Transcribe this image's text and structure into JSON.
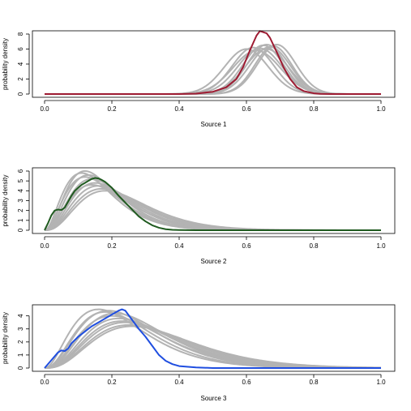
{
  "chart_data": [
    {
      "type": "line",
      "xlabel": "Source 1",
      "ylabel": "probability density",
      "xlim": [
        0,
        1
      ],
      "ylim": [
        0,
        8
      ],
      "x_ticks": [
        0.0,
        0.2,
        0.4,
        0.6,
        0.8,
        1.0
      ],
      "x_tick_labels": [
        "0.0",
        "0.2",
        "0.4",
        "0.6",
        "0.8",
        "1.0"
      ],
      "y_ticks": [
        0,
        2,
        4,
        6,
        8
      ],
      "y_tick_labels": [
        "0",
        "2",
        "4",
        "6",
        "8"
      ],
      "highlight_color": "#9e1b32",
      "background_color": "#b3b3b3",
      "background_series": [
        {
          "shape": "gauss",
          "mu": 0.6,
          "sigma": 0.065,
          "peak": 6.0
        },
        {
          "shape": "gauss",
          "mu": 0.62,
          "sigma": 0.062,
          "peak": 6.2
        },
        {
          "shape": "gauss",
          "mu": 0.64,
          "sigma": 0.065,
          "peak": 6.1
        },
        {
          "shape": "gauss",
          "mu": 0.65,
          "sigma": 0.06,
          "peak": 6.5
        },
        {
          "shape": "gauss",
          "mu": 0.66,
          "sigma": 0.058,
          "peak": 6.6
        },
        {
          "shape": "gauss",
          "mu": 0.67,
          "sigma": 0.06,
          "peak": 6.3
        },
        {
          "shape": "gauss",
          "mu": 0.68,
          "sigma": 0.055,
          "peak": 6.4
        },
        {
          "shape": "gauss",
          "mu": 0.63,
          "sigma": 0.07,
          "peak": 5.8
        },
        {
          "shape": "gauss",
          "mu": 0.69,
          "sigma": 0.057,
          "peak": 6.6
        },
        {
          "shape": "gauss",
          "mu": 0.66,
          "sigma": 0.064,
          "peak": 6.0
        }
      ],
      "highlight_series": {
        "x": [
          0.0,
          0.4,
          0.45,
          0.5,
          0.54,
          0.57,
          0.59,
          0.61,
          0.63,
          0.64,
          0.66,
          0.67,
          0.69,
          0.71,
          0.73,
          0.75,
          0.77,
          0.8,
          0.82,
          0.85,
          1.0
        ],
        "y": [
          0.0,
          0.0,
          0.05,
          0.3,
          0.9,
          2.0,
          3.6,
          5.8,
          7.8,
          8.4,
          8.1,
          7.5,
          5.6,
          3.6,
          2.0,
          0.9,
          0.4,
          0.1,
          0.03,
          0.0,
          0.0
        ]
      }
    },
    {
      "type": "line",
      "xlabel": "Source 2",
      "ylabel": "probability density",
      "xlim": [
        0,
        1
      ],
      "ylim": [
        0,
        6
      ],
      "x_ticks": [
        0.0,
        0.2,
        0.4,
        0.6,
        0.8,
        1.0
      ],
      "x_tick_labels": [
        "0.0",
        "0.2",
        "0.4",
        "0.6",
        "0.8",
        "1.0"
      ],
      "y_ticks": [
        0,
        1,
        2,
        3,
        4,
        5,
        6
      ],
      "y_tick_labels": [
        "0",
        "1",
        "2",
        "3",
        "4",
        "5",
        "6"
      ],
      "highlight_color": "#1f5a1f",
      "background_color": "#b3b3b3",
      "background_series": [
        {
          "shape": "gamma",
          "mode": 0.12,
          "spread": 0.075,
          "peak": 6.0
        },
        {
          "shape": "gamma",
          "mode": 0.13,
          "spread": 0.08,
          "peak": 5.6
        },
        {
          "shape": "gamma",
          "mode": 0.14,
          "spread": 0.085,
          "peak": 5.2
        },
        {
          "shape": "gamma",
          "mode": 0.15,
          "spread": 0.09,
          "peak": 4.8
        },
        {
          "shape": "gamma",
          "mode": 0.16,
          "spread": 0.095,
          "peak": 4.5
        },
        {
          "shape": "gamma",
          "mode": 0.17,
          "spread": 0.1,
          "peak": 4.2
        },
        {
          "shape": "gamma",
          "mode": 0.11,
          "spread": 0.075,
          "peak": 5.8
        },
        {
          "shape": "gamma",
          "mode": 0.18,
          "spread": 0.105,
          "peak": 4.0
        },
        {
          "shape": "gamma",
          "mode": 0.14,
          "spread": 0.09,
          "peak": 4.6
        },
        {
          "shape": "gamma",
          "mode": 0.12,
          "spread": 0.08,
          "peak": 5.4
        }
      ],
      "highlight_series": {
        "x": [
          0.0,
          0.01,
          0.02,
          0.03,
          0.04,
          0.05,
          0.06,
          0.07,
          0.08,
          0.09,
          0.1,
          0.11,
          0.12,
          0.13,
          0.14,
          0.15,
          0.16,
          0.17,
          0.18,
          0.19,
          0.2,
          0.22,
          0.24,
          0.26,
          0.28,
          0.3,
          0.32,
          0.34,
          0.36,
          0.38,
          0.4,
          0.45,
          0.5,
          1.0
        ],
        "y": [
          0.0,
          0.7,
          1.5,
          2.0,
          2.1,
          2.05,
          2.3,
          2.9,
          3.5,
          4.0,
          4.3,
          4.6,
          4.8,
          5.0,
          5.2,
          5.3,
          5.25,
          5.1,
          4.9,
          4.6,
          4.3,
          3.5,
          2.8,
          2.1,
          1.4,
          0.9,
          0.5,
          0.25,
          0.1,
          0.04,
          0.02,
          0.0,
          0.0,
          0.0
        ]
      }
    },
    {
      "type": "line",
      "xlabel": "Source 3",
      "ylabel": "probability density",
      "xlim": [
        0,
        1
      ],
      "ylim": [
        0,
        4.6
      ],
      "x_ticks": [
        0.0,
        0.2,
        0.4,
        0.6,
        0.8,
        1.0
      ],
      "x_tick_labels": [
        "0.0",
        "0.2",
        "0.4",
        "0.6",
        "0.8",
        "1.0"
      ],
      "y_ticks": [
        0,
        1,
        2,
        3,
        4
      ],
      "y_tick_labels": [
        "0",
        "1",
        "2",
        "3",
        "4"
      ],
      "highlight_color": "#1f4ee0",
      "background_color": "#b3b3b3",
      "background_series": [
        {
          "shape": "gamma",
          "mode": 0.16,
          "spread": 0.11,
          "peak": 4.5
        },
        {
          "shape": "gamma",
          "mode": 0.18,
          "spread": 0.115,
          "peak": 4.3
        },
        {
          "shape": "gamma",
          "mode": 0.2,
          "spread": 0.125,
          "peak": 4.0
        },
        {
          "shape": "gamma",
          "mode": 0.22,
          "spread": 0.13,
          "peak": 3.8
        },
        {
          "shape": "gamma",
          "mode": 0.24,
          "spread": 0.14,
          "peak": 3.5
        },
        {
          "shape": "gamma",
          "mode": 0.25,
          "spread": 0.145,
          "peak": 3.3
        },
        {
          "shape": "gamma",
          "mode": 0.19,
          "spread": 0.12,
          "peak": 4.4
        },
        {
          "shape": "gamma",
          "mode": 0.21,
          "spread": 0.125,
          "peak": 4.2
        },
        {
          "shape": "gamma",
          "mode": 0.23,
          "spread": 0.135,
          "peak": 3.6
        },
        {
          "shape": "gamma",
          "mode": 0.26,
          "spread": 0.15,
          "peak": 3.2
        }
      ],
      "highlight_series": {
        "x": [
          0.0,
          0.02,
          0.04,
          0.05,
          0.06,
          0.07,
          0.08,
          0.1,
          0.12,
          0.14,
          0.16,
          0.18,
          0.2,
          0.22,
          0.23,
          0.24,
          0.26,
          0.28,
          0.3,
          0.32,
          0.34,
          0.36,
          0.38,
          0.4,
          0.45,
          0.5,
          1.0
        ],
        "y": [
          0.0,
          0.6,
          1.2,
          1.35,
          1.3,
          1.5,
          1.9,
          2.4,
          2.8,
          3.2,
          3.5,
          3.8,
          4.1,
          4.4,
          4.5,
          4.4,
          3.7,
          3.0,
          2.4,
          1.7,
          1.0,
          0.55,
          0.3,
          0.15,
          0.05,
          0.0,
          0.0
        ]
      }
    }
  ]
}
